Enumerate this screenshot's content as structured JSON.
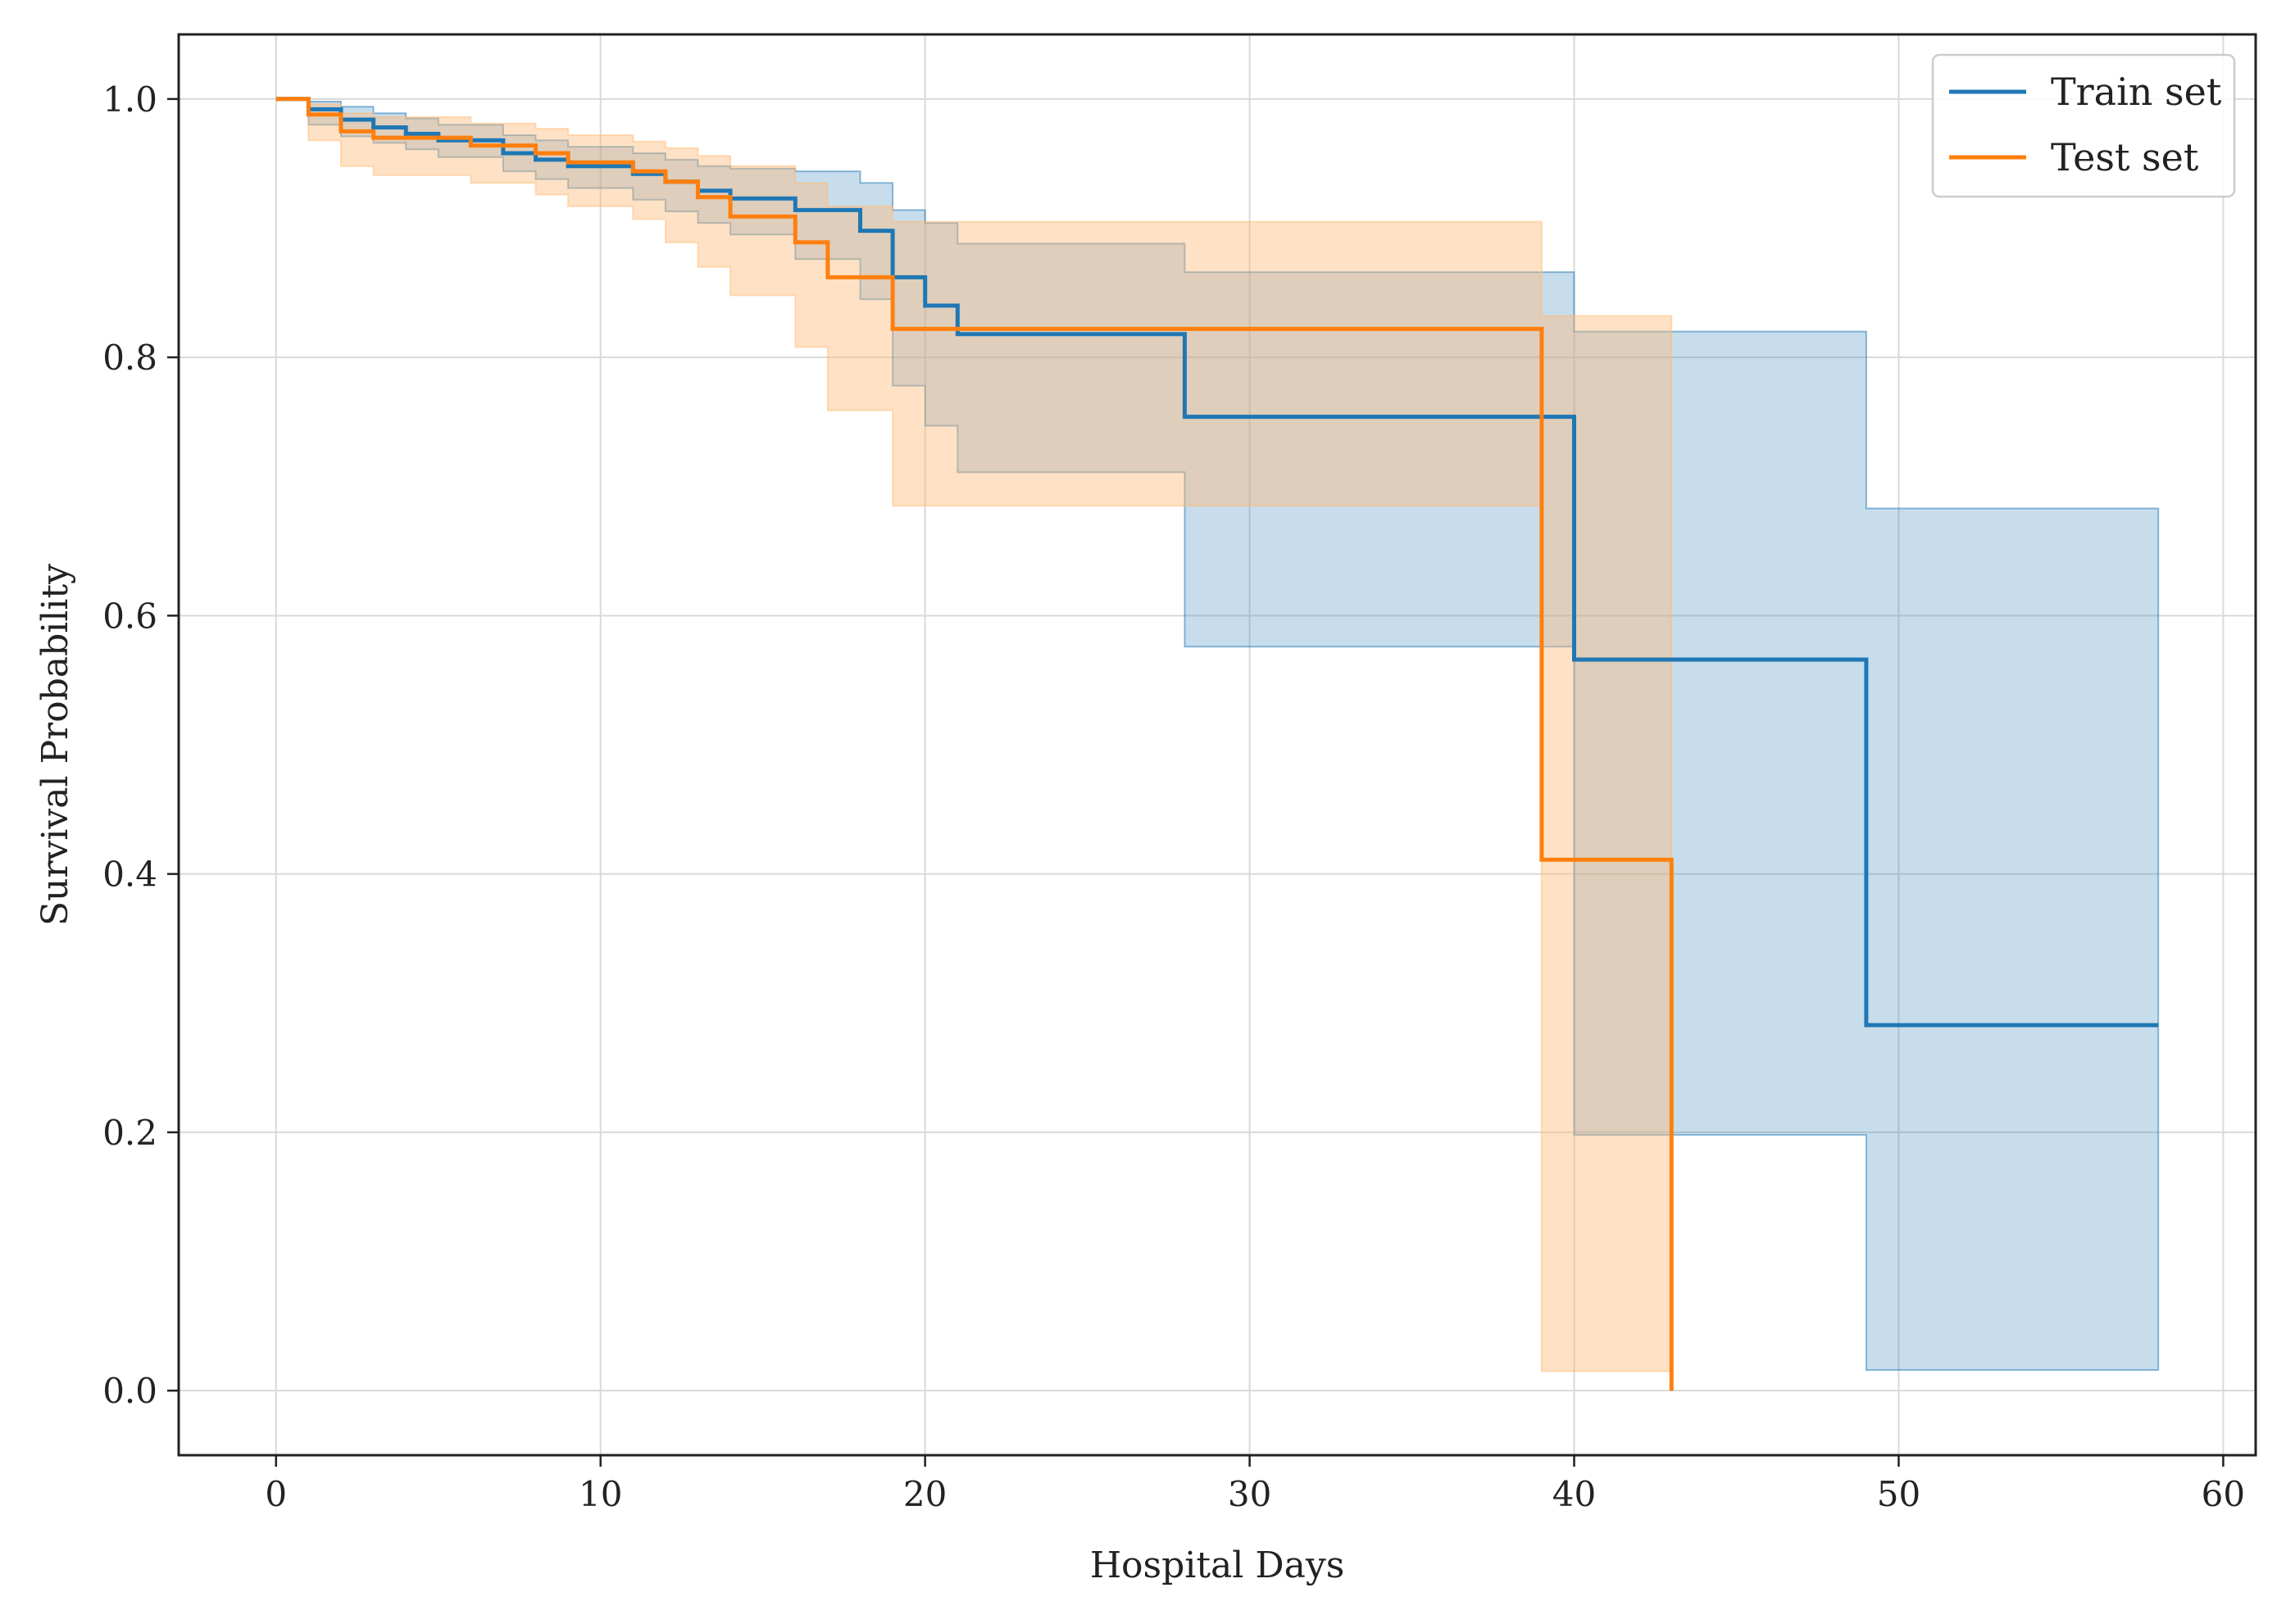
{
  "chart_data": {
    "type": "line",
    "subtype": "kaplan-meier-step",
    "title": "",
    "xlabel": "Hospital Days",
    "ylabel": "Survival Probability",
    "xlim": [
      -3,
      61
    ],
    "ylim": [
      -0.05,
      1.05
    ],
    "xticks": [
      0,
      10,
      20,
      30,
      40,
      50,
      60
    ],
    "xtick_labels": [
      "0",
      "10",
      "20",
      "30",
      "40",
      "50",
      "60"
    ],
    "yticks": [
      0.0,
      0.2,
      0.4,
      0.6,
      0.8,
      1.0
    ],
    "ytick_labels": [
      "0.0",
      "0.2",
      "0.4",
      "0.6",
      "0.8",
      "1.0"
    ],
    "grid": true,
    "legend_position": "top-right",
    "series": [
      {
        "name": "Train set",
        "color": "#1f77b4",
        "band_color": "#1f77b4",
        "times": [
          0,
          1,
          2,
          3,
          4,
          5,
          7,
          8,
          9,
          11,
          12,
          13,
          14,
          16,
          18,
          19,
          20,
          21,
          28,
          40,
          49,
          58
        ],
        "survival": [
          1.0,
          0.992,
          0.984,
          0.978,
          0.973,
          0.968,
          0.958,
          0.953,
          0.948,
          0.942,
          0.936,
          0.929,
          0.923,
          0.914,
          0.898,
          0.862,
          0.84,
          0.818,
          0.754,
          0.566,
          0.283,
          0.283
        ],
        "ci_lower": [
          1.0,
          0.98,
          0.971,
          0.966,
          0.961,
          0.955,
          0.944,
          0.938,
          0.931,
          0.922,
          0.913,
          0.904,
          0.895,
          0.876,
          0.845,
          0.778,
          0.747,
          0.711,
          0.576,
          0.198,
          0.016,
          0.016
        ],
        "ci_upper": [
          1.0,
          0.998,
          0.994,
          0.989,
          0.985,
          0.98,
          0.972,
          0.968,
          0.963,
          0.958,
          0.953,
          0.948,
          0.946,
          0.944,
          0.935,
          0.914,
          0.904,
          0.888,
          0.866,
          0.82,
          0.683,
          0.683
        ]
      },
      {
        "name": "Test set",
        "color": "#ff7f0e",
        "band_color": "#ffbb78",
        "times": [
          0,
          1,
          2,
          3,
          6,
          8,
          9,
          11,
          12,
          13,
          14,
          16,
          17,
          19,
          39,
          43
        ],
        "survival": [
          1.0,
          0.988,
          0.975,
          0.97,
          0.964,
          0.958,
          0.951,
          0.944,
          0.936,
          0.924,
          0.909,
          0.889,
          0.862,
          0.822,
          0.411,
          0.0
        ],
        "ci_lower": [
          1.0,
          0.968,
          0.948,
          0.941,
          0.935,
          0.926,
          0.917,
          0.907,
          0.889,
          0.87,
          0.848,
          0.808,
          0.759,
          0.685,
          0.015,
          0.015
        ],
        "ci_upper": [
          1.0,
          0.996,
          0.989,
          0.986,
          0.981,
          0.977,
          0.972,
          0.967,
          0.962,
          0.956,
          0.948,
          0.935,
          0.917,
          0.905,
          0.832,
          0.832
        ],
        "end_time": 43
      }
    ]
  }
}
